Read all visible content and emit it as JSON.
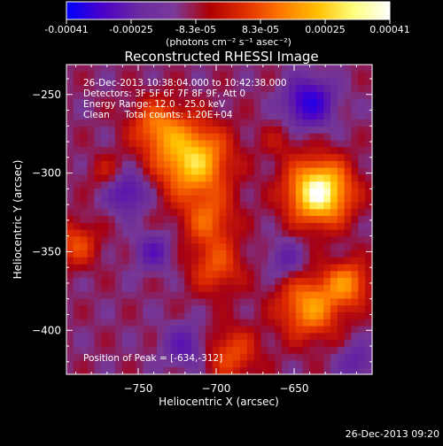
{
  "colorbar": {
    "tick_labels": [
      "-0.00041",
      "-0.00025",
      "-8.3e-05",
      "8.3e-05",
      "0.00025",
      "0.00041"
    ],
    "units_label": "(photons cm⁻² s⁻¹ asec⁻²)",
    "range": [
      -0.00041,
      0.00041
    ],
    "gradient_colors": [
      "#0000ff",
      "#4b00c8",
      "#6a2aa0",
      "#7a3a9a",
      "#b00000",
      "#e23000",
      "#ff7a00",
      "#ffc000",
      "#ffff80",
      "#ffffff"
    ]
  },
  "image": {
    "title": "Reconstructed RHESSI Image",
    "info_lines": [
      "26-Dec-2013 10:38:04.000 to 10:42:38.000",
      "Detectors: 3F 5F 6F 7F 8F 9F, Att 0",
      "Energy Range: 12.0 - 25.0 keV",
      "Clean     Total counts: 1.20E+04"
    ],
    "peak_label": "Position of Peak = [-634,-312]",
    "timestamp": "26-Dec-2013 09:20"
  },
  "chart_data": {
    "type": "heatmap",
    "title": "Reconstructed RHESSI Image",
    "xlabel": "Heliocentric X (arcsec)",
    "ylabel": "Heliocentric Y (arcsec)",
    "xlim": [
      -796,
      -600
    ],
    "ylim": [
      -428,
      -231
    ],
    "x_ticks": [
      -750,
      -700,
      -650
    ],
    "x_tick_labels": [
      "−750",
      "−700",
      "−650"
    ],
    "y_ticks": [
      -400,
      -350,
      -300,
      -250
    ],
    "y_tick_labels": [
      "−400",
      "−350",
      "−300",
      "−250"
    ],
    "grid": false,
    "colormap_range": [
      -0.00041,
      0.00041
    ],
    "peak": {
      "x": -634,
      "y": -312,
      "value": 0.00041
    },
    "sources": [
      {
        "x": -634,
        "y": -312,
        "value": 0.00041,
        "spread": 14
      },
      {
        "x": -715,
        "y": -292,
        "value": 0.00032,
        "spread": 16
      },
      {
        "x": -738,
        "y": -270,
        "value": 0.00018,
        "spread": 12
      },
      {
        "x": -705,
        "y": -330,
        "value": 0.00016,
        "spread": 12
      },
      {
        "x": -700,
        "y": -360,
        "value": 0.00015,
        "spread": 12
      },
      {
        "x": -640,
        "y": -385,
        "value": 0.00024,
        "spread": 14
      },
      {
        "x": -615,
        "y": -370,
        "value": 0.0002,
        "spread": 10
      },
      {
        "x": -690,
        "y": -415,
        "value": 0.00015,
        "spread": 12
      },
      {
        "x": -790,
        "y": -345,
        "value": 0.00015,
        "spread": 10
      },
      {
        "x": -770,
        "y": -300,
        "value": 8e-05,
        "spread": 8
      },
      {
        "x": -660,
        "y": -280,
        "value": 6e-05,
        "spread": 8
      }
    ],
    "minima": [
      {
        "x": -640,
        "y": -255,
        "value": -0.0003,
        "spread": 10
      },
      {
        "x": -757,
        "y": -312,
        "value": -0.00018,
        "spread": 9
      },
      {
        "x": -740,
        "y": -350,
        "value": -0.00015,
        "spread": 8
      },
      {
        "x": -720,
        "y": -410,
        "value": -0.00015,
        "spread": 9
      },
      {
        "x": -655,
        "y": -355,
        "value": -0.00012,
        "spread": 8
      },
      {
        "x": -610,
        "y": -420,
        "value": -0.00012,
        "spread": 8
      }
    ]
  }
}
